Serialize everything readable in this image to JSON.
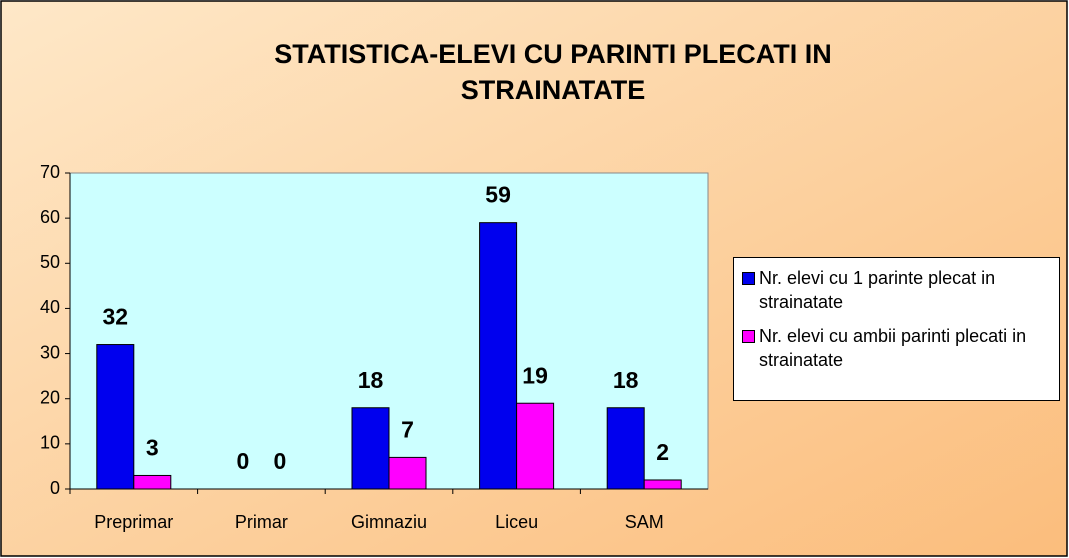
{
  "chart_data": {
    "type": "bar",
    "title": "STATISTICA-ELEVI CU PARINTI PLECATI IN STRAINATATE",
    "categories": [
      "Preprimar",
      "Primar",
      "Gimnaziu",
      "Liceu",
      "SAM"
    ],
    "series": [
      {
        "name": "Nr. elevi cu 1 parinte plecat in strainatate",
        "color": "#0000ee",
        "values": [
          32,
          0,
          18,
          59,
          18
        ]
      },
      {
        "name": "Nr. elevi cu ambii parinti plecati in strainatate",
        "color": "#ff00ff",
        "values": [
          3,
          0,
          7,
          19,
          2
        ]
      }
    ],
    "ylim": [
      0,
      70
    ],
    "yticks": [
      0,
      10,
      20,
      30,
      40,
      50,
      60,
      70
    ],
    "grid": false,
    "legend": "right"
  }
}
